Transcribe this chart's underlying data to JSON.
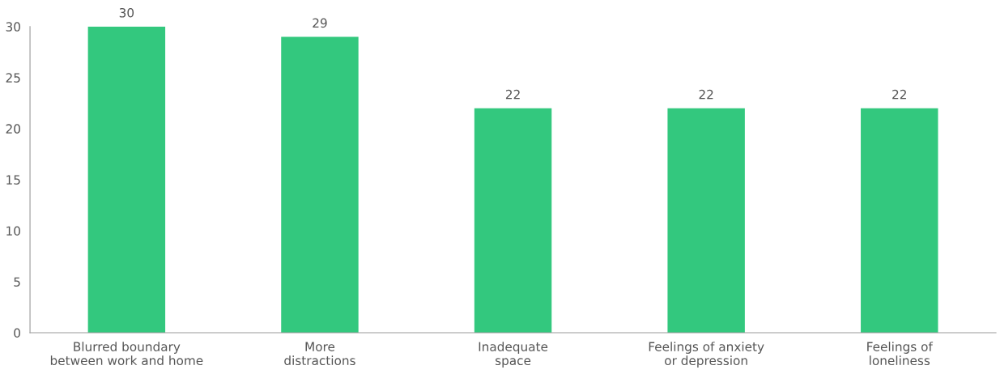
{
  "chart_data": {
    "type": "bar",
    "categories": [
      "Blurred boundary\nbetween work and home",
      "More\ndistractions",
      "Inadequate\nspace",
      "Feelings of anxiety\nor depression",
      "Feelings of\nloneliness"
    ],
    "values": [
      30,
      29,
      22,
      22,
      22
    ],
    "color": "#33c87e",
    "ylim": [
      0,
      30
    ],
    "yticks": [
      0,
      5,
      10,
      15,
      20,
      25,
      30
    ],
    "data_labels": true,
    "grid": false,
    "legend": false
  }
}
